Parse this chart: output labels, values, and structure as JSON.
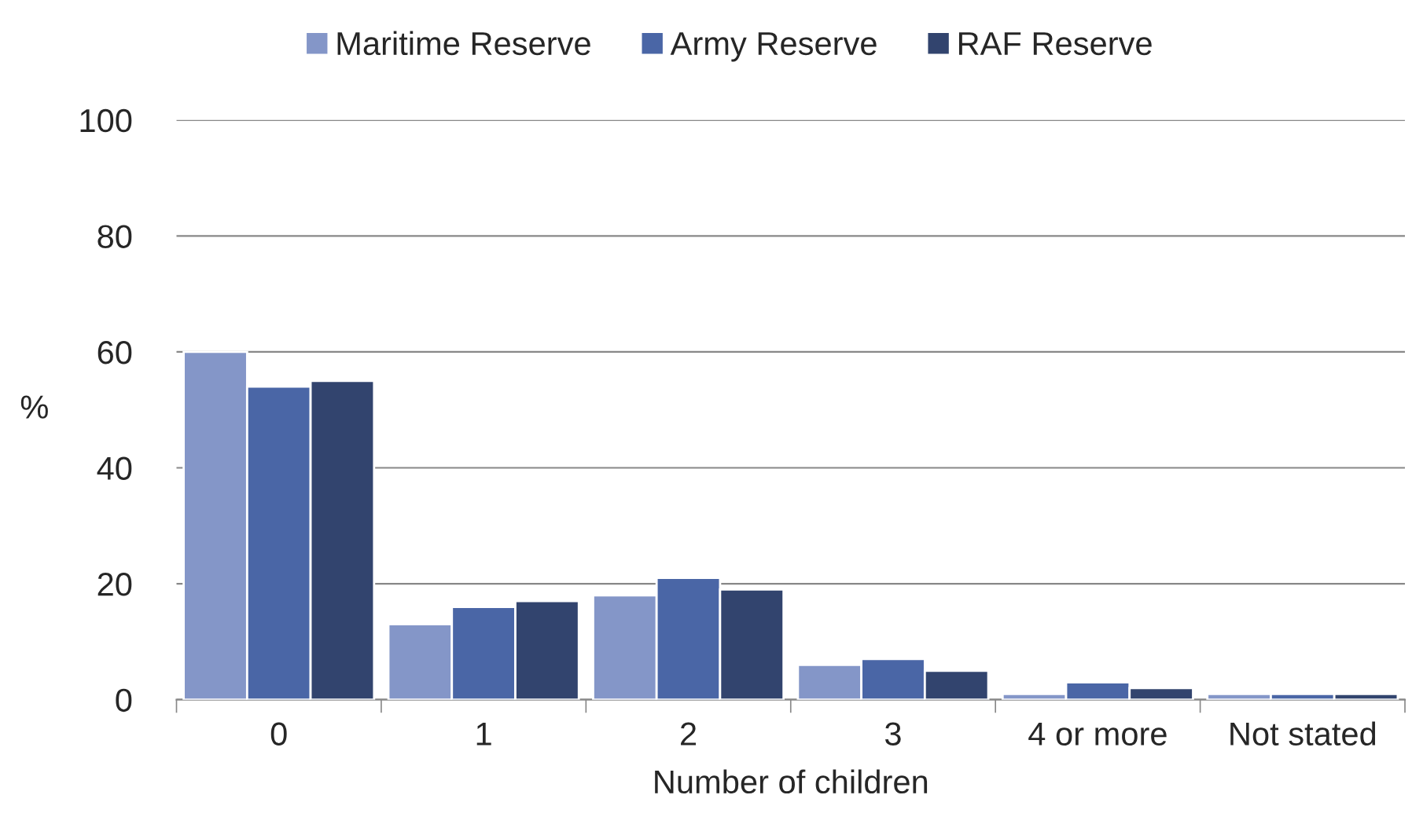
{
  "chart_data": {
    "type": "bar",
    "xlabel": "Number of children",
    "ylabel": "%",
    "categories": [
      "0",
      "1",
      "2",
      "3",
      "4 or more",
      "Not stated"
    ],
    "series": [
      {
        "name": "Maritime Reserve",
        "color": "#8496c8",
        "values": [
          60,
          13,
          18,
          6,
          1,
          1
        ]
      },
      {
        "name": "Army Reserve",
        "color": "#4a66a6",
        "values": [
          54,
          16,
          21,
          7,
          3,
          1
        ]
      },
      {
        "name": "RAF Reserve",
        "color": "#32446e",
        "values": [
          55,
          17,
          19,
          5,
          2,
          1
        ]
      }
    ],
    "ylim": [
      0,
      100
    ],
    "yticks": [
      0,
      20,
      40,
      60,
      80,
      100
    ],
    "grid": "y",
    "legend": "top"
  }
}
